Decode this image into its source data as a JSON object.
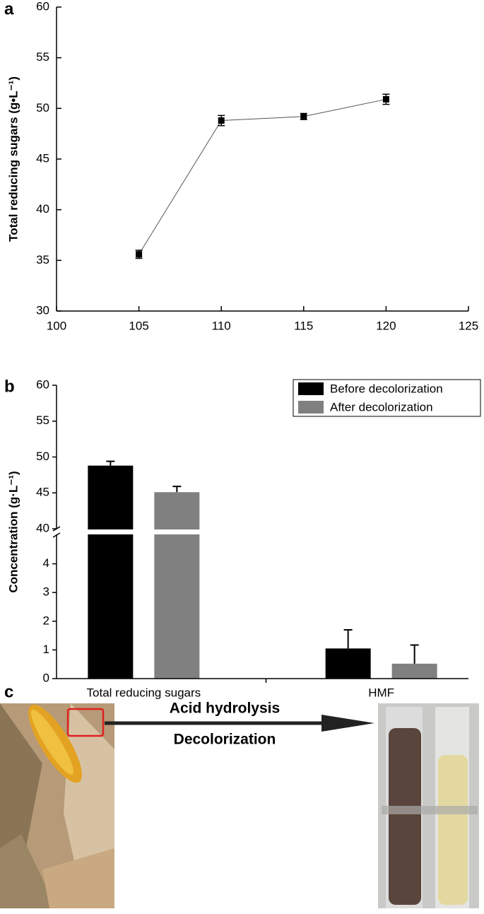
{
  "panel_labels": [
    "a",
    "b",
    "c"
  ],
  "chart_data": [
    {
      "type": "line",
      "ylabel": "Total reducing sugars (g•L⁻¹)",
      "x": [
        105,
        110,
        115,
        120
      ],
      "values": [
        35.6,
        48.8,
        49.2,
        50.9
      ],
      "errors": [
        0.4,
        0.5,
        0.3,
        0.5
      ],
      "color": "#000000",
      "xlim": [
        100,
        125
      ],
      "xticks": [
        100,
        105,
        110,
        115,
        120,
        125
      ],
      "ylim": [
        30,
        60
      ],
      "yticks": [
        30,
        35,
        40,
        45,
        50,
        55,
        60
      ]
    },
    {
      "type": "bar",
      "ylabel": "Concentration (g·L⁻¹)",
      "categories": [
        "Total reducing sugars",
        "HMF"
      ],
      "series": [
        {
          "name": "Before decolorization",
          "color": "#000000",
          "values": [
            48.8,
            1.05
          ],
          "errors": [
            0.6,
            0.65
          ]
        },
        {
          "name": "After decolorization",
          "color": "#808080",
          "values": [
            45.1,
            0.52
          ],
          "errors": [
            0.8,
            0.65
          ]
        }
      ],
      "ylim": [
        0,
        60
      ],
      "ybreak": [
        5,
        40
      ],
      "yticks": [
        0,
        1,
        2,
        3,
        4,
        40,
        45,
        50,
        55,
        60
      ],
      "legend": "upper right"
    }
  ],
  "diagram": {
    "step_1": "Acid hydrolysis",
    "step_2": "Decolorization"
  }
}
